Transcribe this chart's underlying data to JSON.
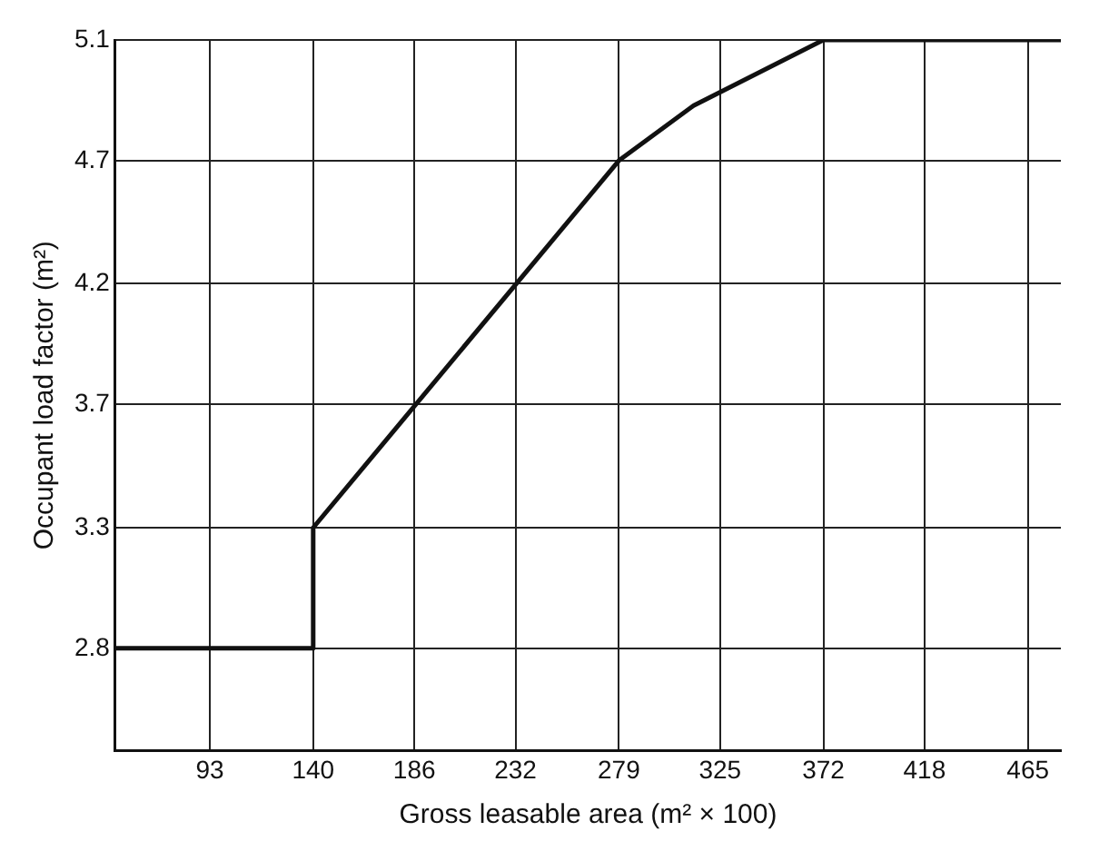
{
  "chart_data": {
    "type": "line",
    "xlabel": "Gross leasable area (m² × 100)",
    "ylabel": "Occupant load factor (m²)",
    "series": [
      {
        "color": "#111111",
        "x": [
          50,
          140,
          140,
          279,
          313,
          372,
          480
        ],
        "values": [
          2.79,
          2.79,
          3.25,
          4.65,
          4.86,
          5.11,
          5.11
        ]
      }
    ],
    "xlim": [
      50,
      480
    ],
    "xticks": [
      93,
      140,
      186,
      232,
      279,
      325,
      372,
      418,
      465
    ],
    "ylim": [
      2.4,
      5.11
    ],
    "yticks": [
      {
        "value": 2.79,
        "label": "2.8"
      },
      {
        "value": 3.25,
        "label": "3.3"
      },
      {
        "value": 3.72,
        "label": "3.7"
      },
      {
        "value": 4.18,
        "label": "4.2"
      },
      {
        "value": 4.65,
        "label": "4.7"
      },
      {
        "value": 5.11,
        "label": "5.1"
      }
    ],
    "grid": true,
    "legend": false,
    "marker": "none",
    "line_style": "solid"
  }
}
